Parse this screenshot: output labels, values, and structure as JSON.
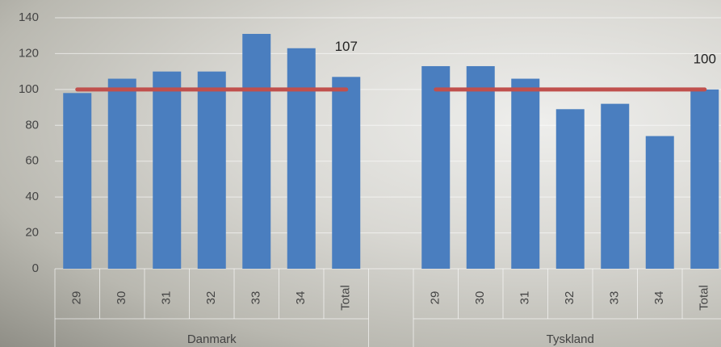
{
  "chart_data": {
    "type": "bar",
    "groups": [
      {
        "name": "Danmark",
        "categories": [
          "29",
          "30",
          "31",
          "32",
          "33",
          "34",
          "Total"
        ],
        "values": [
          98,
          106,
          110,
          110,
          131,
          123,
          107
        ],
        "line_values": [
          100,
          100,
          100,
          100,
          100,
          100,
          100
        ]
      },
      {
        "name": "Tyskland",
        "categories": [
          "29",
          "30",
          "31",
          "32",
          "33",
          "34",
          "Total"
        ],
        "values": [
          113,
          113,
          106,
          89,
          92,
          74,
          100
        ],
        "line_values": [
          100,
          100,
          100,
          100,
          100,
          100,
          100
        ]
      }
    ],
    "bar_color": "#4a7ebf",
    "line_color": "#c0504d",
    "label_last": true,
    "ylim": [
      0,
      140
    ],
    "yticks": [
      0,
      20,
      40,
      60,
      80,
      100,
      120,
      140
    ],
    "grid": true
  }
}
